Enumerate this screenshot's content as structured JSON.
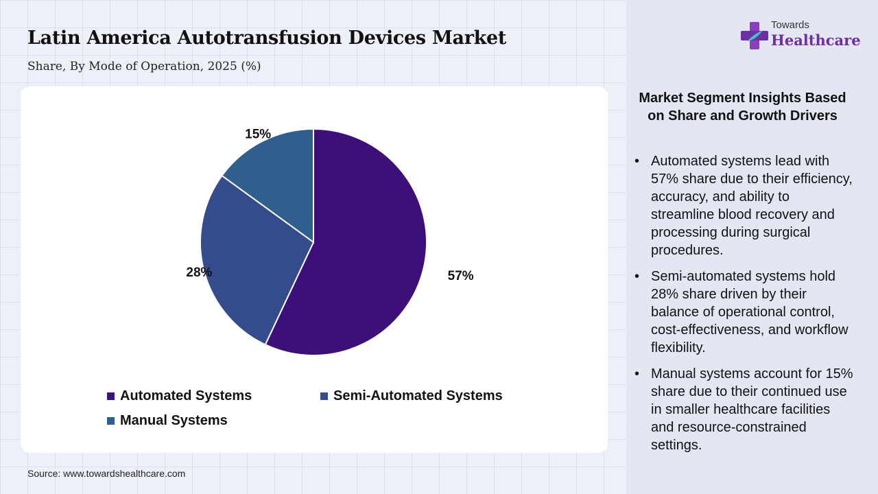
{
  "header": {
    "title": "Latin America Autotransfusion Devices Market",
    "subtitle": "Share, By Mode of Operation, 2025 (%)"
  },
  "logo": {
    "small_text": "Towards",
    "big_text": "Healthcare",
    "icon": "plus-cross-logo-icon"
  },
  "chart_data": {
    "type": "pie",
    "categories": [
      "Automated Systems",
      "Semi-Automated Systems",
      "Manual Systems"
    ],
    "values": [
      57,
      28,
      15
    ],
    "labels": [
      "57%",
      "28%",
      "15%"
    ],
    "colors": [
      "#3d0f7a",
      "#354c8c",
      "#2f5f8c"
    ],
    "legend_position": "bottom",
    "start_angle_deg": 0,
    "direction": "clockwise"
  },
  "insights": {
    "title": "Market Segment Insights Based on Share and Growth Drivers",
    "bullet": "•",
    "items": [
      "Automated systems lead with 57% share due to their efficiency, accuracy, and ability to streamline blood recovery and processing during surgical procedures.",
      "Semi-automated systems hold 28% share driven by their balance of operational control, cost-effectiveness, and workflow flexibility.",
      "Manual systems account for 15% share due to their continued use in smaller healthcare facilities and resource-constrained settings."
    ]
  },
  "source": "Source: www.towardshealthcare.com",
  "colors": {
    "background": "#eef0f7",
    "side_panel": "#e4e7f1",
    "brand_purple": "#6d2fa5"
  }
}
